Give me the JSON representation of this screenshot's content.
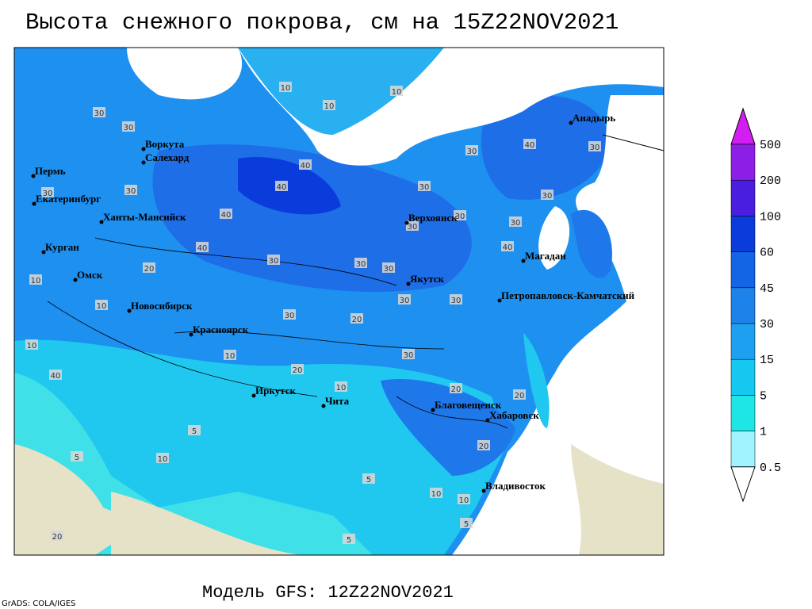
{
  "title": "Высота снежного покрова, см на 15Z22NOV2021",
  "footer": "Модель GFS: 12Z22NOV2021",
  "credit": "GrADS: COLA/IGES",
  "legend": {
    "labels": [
      "0.5",
      "1",
      "5",
      "15",
      "30",
      "45",
      "60",
      "100",
      "200",
      "500"
    ],
    "colors": [
      "#ffffff",
      "#a0f4ff",
      "#1ee6e6",
      "#14c8f0",
      "#1ea0f0",
      "#1e82eb",
      "#1464e6",
      "#0a3cdc",
      "#4a1ee0",
      "#8c1ee6",
      "#d21ef0"
    ]
  },
  "cities": [
    "Воркута",
    "Салехард",
    "Пермь",
    "Екатеринбург",
    "Ханты-Мансийск",
    "Курган",
    "Омск",
    "Новосибирск",
    "Красноярск",
    "Иркутск",
    "Чита",
    "Благовещенск",
    "Хабаровск",
    "Владивосток",
    "Верхоянск",
    "Якутск",
    "Магадан",
    "Анадырь",
    "Петропавловск-Камчатский"
  ],
  "contour_labels": [
    "10",
    "10",
    "10",
    "30",
    "30",
    "30",
    "40",
    "30",
    "40",
    "40",
    "30",
    "30",
    "30",
    "30",
    "40",
    "30",
    "30",
    "40",
    "40",
    "30",
    "30",
    "30",
    "20",
    "10",
    "30",
    "30",
    "10",
    "30",
    "20",
    "10",
    "10",
    "30",
    "20",
    "40",
    "20",
    "20",
    "10",
    "5",
    "5",
    "10",
    "5",
    "10",
    "10",
    "5",
    "20",
    "5",
    "20",
    "30"
  ]
}
